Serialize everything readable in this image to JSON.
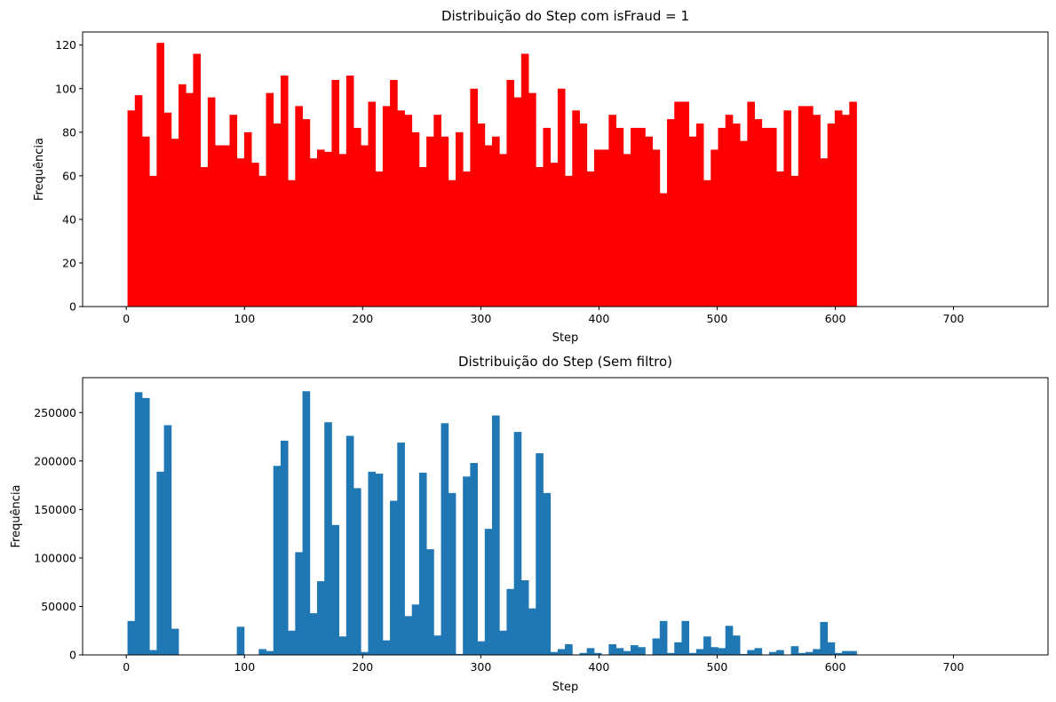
{
  "chart_data": [
    {
      "type": "bar",
      "title": "Distribuição do Step com isFraud = 1",
      "xlabel": "Step",
      "ylabel": "Frequência",
      "color": "#ff0000",
      "xlim": [
        -37,
        780
      ],
      "ylim": [
        0,
        126
      ],
      "xticks": [
        0,
        100,
        200,
        300,
        400,
        500,
        600,
        700
      ],
      "yticks": [
        0,
        20,
        40,
        60,
        80,
        100,
        120
      ],
      "bin_start": 1,
      "bin_width": 6.17,
      "values": [
        90,
        97,
        78,
        60,
        121,
        89,
        77,
        102,
        98,
        116,
        64,
        96,
        74,
        74,
        88,
        68,
        80,
        66,
        60,
        98,
        84,
        106,
        58,
        92,
        86,
        68,
        72,
        71,
        104,
        70,
        106,
        82,
        74,
        94,
        62,
        92,
        104,
        90,
        88,
        80,
        64,
        78,
        88,
        78,
        58,
        80,
        62,
        100,
        84,
        74,
        78,
        70,
        104,
        96,
        116,
        98,
        64,
        82,
        66,
        100,
        60,
        90,
        84,
        62,
        72,
        72,
        88,
        82,
        70,
        82,
        82,
        78,
        72,
        52,
        86,
        94,
        94,
        78,
        84,
        58,
        72,
        82,
        88,
        84,
        76,
        94,
        86,
        82,
        82,
        62,
        90,
        60,
        92,
        92,
        88,
        68,
        84,
        90,
        88,
        94
      ]
    },
    {
      "type": "bar",
      "title": "Distribuição do Step (Sem filtro)",
      "xlabel": "Step",
      "ylabel": "Frequência",
      "color": "#1f77b4",
      "xlim": [
        -37,
        780
      ],
      "ylim": [
        0,
        286000
      ],
      "xticks": [
        0,
        100,
        200,
        300,
        400,
        500,
        600,
        700
      ],
      "yticks": [
        0,
        50000,
        100000,
        150000,
        200000,
        250000
      ],
      "bin_start": 1,
      "bin_width": 6.17,
      "values": [
        35000,
        271000,
        265000,
        5000,
        189000,
        237000,
        27000,
        0,
        0,
        0,
        0,
        0,
        0,
        0,
        0,
        29000,
        0,
        0,
        6000,
        4000,
        195000,
        221000,
        25000,
        106000,
        272000,
        43000,
        76000,
        240000,
        134000,
        19000,
        226000,
        172000,
        3000,
        189000,
        187000,
        15000,
        159000,
        219000,
        40000,
        52000,
        188000,
        109000,
        20000,
        239000,
        167000,
        1000,
        184000,
        198000,
        14000,
        130000,
        247000,
        25000,
        68000,
        230000,
        77000,
        48000,
        208000,
        167000,
        3000,
        6000,
        11000,
        0,
        2000,
        7000,
        2000,
        0,
        11000,
        7000,
        4000,
        10000,
        8000,
        0,
        17000,
        35000,
        2000,
        13000,
        35000,
        2000,
        6000,
        19000,
        8000,
        7000,
        30000,
        20000,
        1000,
        5000,
        7000,
        0,
        3000,
        5000,
        0,
        9000,
        2000,
        3000,
        6000,
        34000,
        13000,
        2000,
        4000,
        4000
      ]
    }
  ]
}
